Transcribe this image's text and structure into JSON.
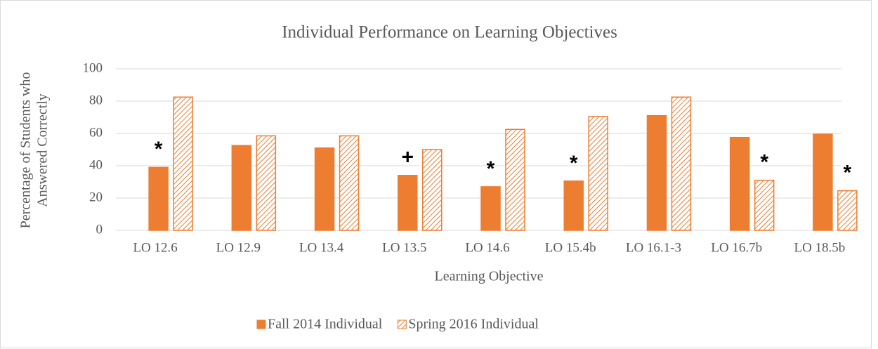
{
  "chart_data": {
    "type": "bar",
    "title": "Individual Performance on Learning Objectives",
    "x_label": "Learning Objective",
    "y_label": [
      "Percentage of Students who",
      "Answered Correctly"
    ],
    "categories": [
      "LO 12.6",
      "LO 12.9",
      "LO 13.4",
      "LO 13.5",
      "LO 14.6",
      "LO 15.4b",
      "LO 16.1-3",
      "LO 16.7b",
      "LO 18.5b"
    ],
    "series": [
      {
        "name": "Fall 2014 Individual",
        "color": "#ed7d31",
        "pattern": "solid",
        "values": [
          39,
          52.5,
          51,
          34,
          27,
          30.5,
          71,
          57.5,
          59.5
        ]
      },
      {
        "name": "Spring 2016 Individual",
        "color": "#ed7d31",
        "pattern": "hatch",
        "values": [
          82.5,
          58.5,
          58.5,
          50,
          62.5,
          70.5,
          82.5,
          31,
          24.5
        ]
      }
    ],
    "annotations": [
      {
        "text": "*",
        "x": "LO 12.6"
      },
      {
        "text": "+",
        "x": "LO 13.5"
      },
      {
        "text": "*",
        "x": "LO 14.6"
      },
      {
        "text": "*",
        "x": "LO 15.4b"
      },
      {
        "text": "*",
        "x": "LO 16.7b"
      },
      {
        "text": "*",
        "x": "LO 18.5b"
      }
    ],
    "ylim": [
      0,
      100
    ],
    "yticks": [
      0,
      20,
      40,
      60,
      80,
      100
    ],
    "grid": true,
    "legend": "bottom"
  }
}
